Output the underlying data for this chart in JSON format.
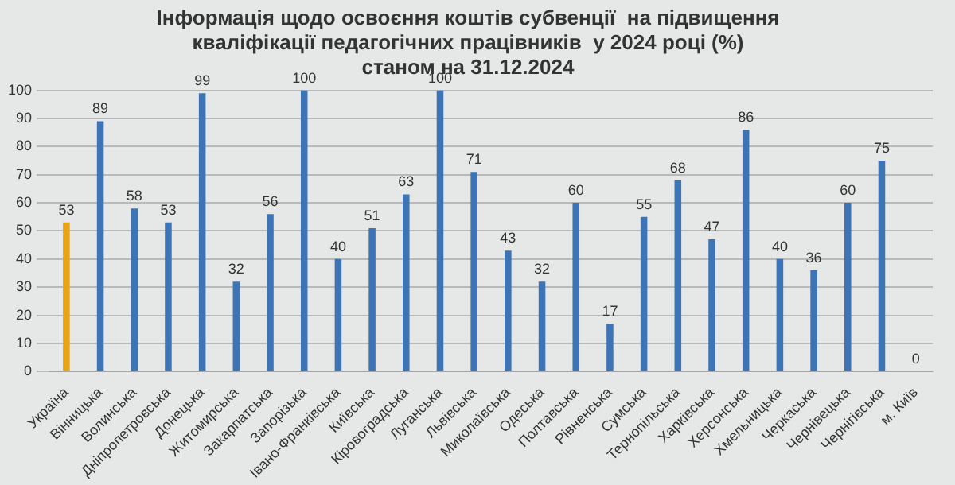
{
  "chart_data": {
    "type": "bar",
    "title": "Інформація щодо освоєння коштів субвенції  на підвищення\nкваліфікації педагогічних працівників  у 2024 році (%)\nстаном на 31.12.2024",
    "categories": [
      "Україна",
      "Вінницька",
      "Волинська",
      "Дніпропетровська",
      "Донецька",
      "Житомирська",
      "Закарпатська",
      "Запорізька",
      "Івано-Франківська",
      "Київська",
      "Кіровоградська",
      "Луганська",
      "Львівська",
      "Миколаївська",
      "Одеська",
      "Полтавська",
      "Рівненська",
      "Сумська",
      "Тернопільська",
      "Харківська",
      "Херсонська",
      "Хмельницька",
      "Черкаська",
      "Чернівецька",
      "Чернігівська",
      "м. Київ"
    ],
    "values": [
      53,
      89,
      58,
      53,
      99,
      32,
      56,
      100,
      40,
      51,
      63,
      100,
      71,
      43,
      32,
      60,
      17,
      55,
      68,
      47,
      86,
      40,
      36,
      60,
      75,
      0
    ],
    "colors": [
      "#e8a317",
      "#3d74b6",
      "#3d74b6",
      "#3d74b6",
      "#3d74b6",
      "#3d74b6",
      "#3d74b6",
      "#3d74b6",
      "#3d74b6",
      "#3d74b6",
      "#3d74b6",
      "#3d74b6",
      "#3d74b6",
      "#3d74b6",
      "#3d74b6",
      "#3d74b6",
      "#3d74b6",
      "#3d74b6",
      "#3d74b6",
      "#3d74b6",
      "#3d74b6",
      "#3d74b6",
      "#3d74b6",
      "#3d74b6",
      "#3d74b6",
      "#3d74b6"
    ],
    "ylim": [
      0,
      100
    ],
    "yticks": [
      0,
      10,
      20,
      30,
      40,
      50,
      60,
      70,
      80,
      90,
      100
    ],
    "grid": "y",
    "data_labels": true
  }
}
